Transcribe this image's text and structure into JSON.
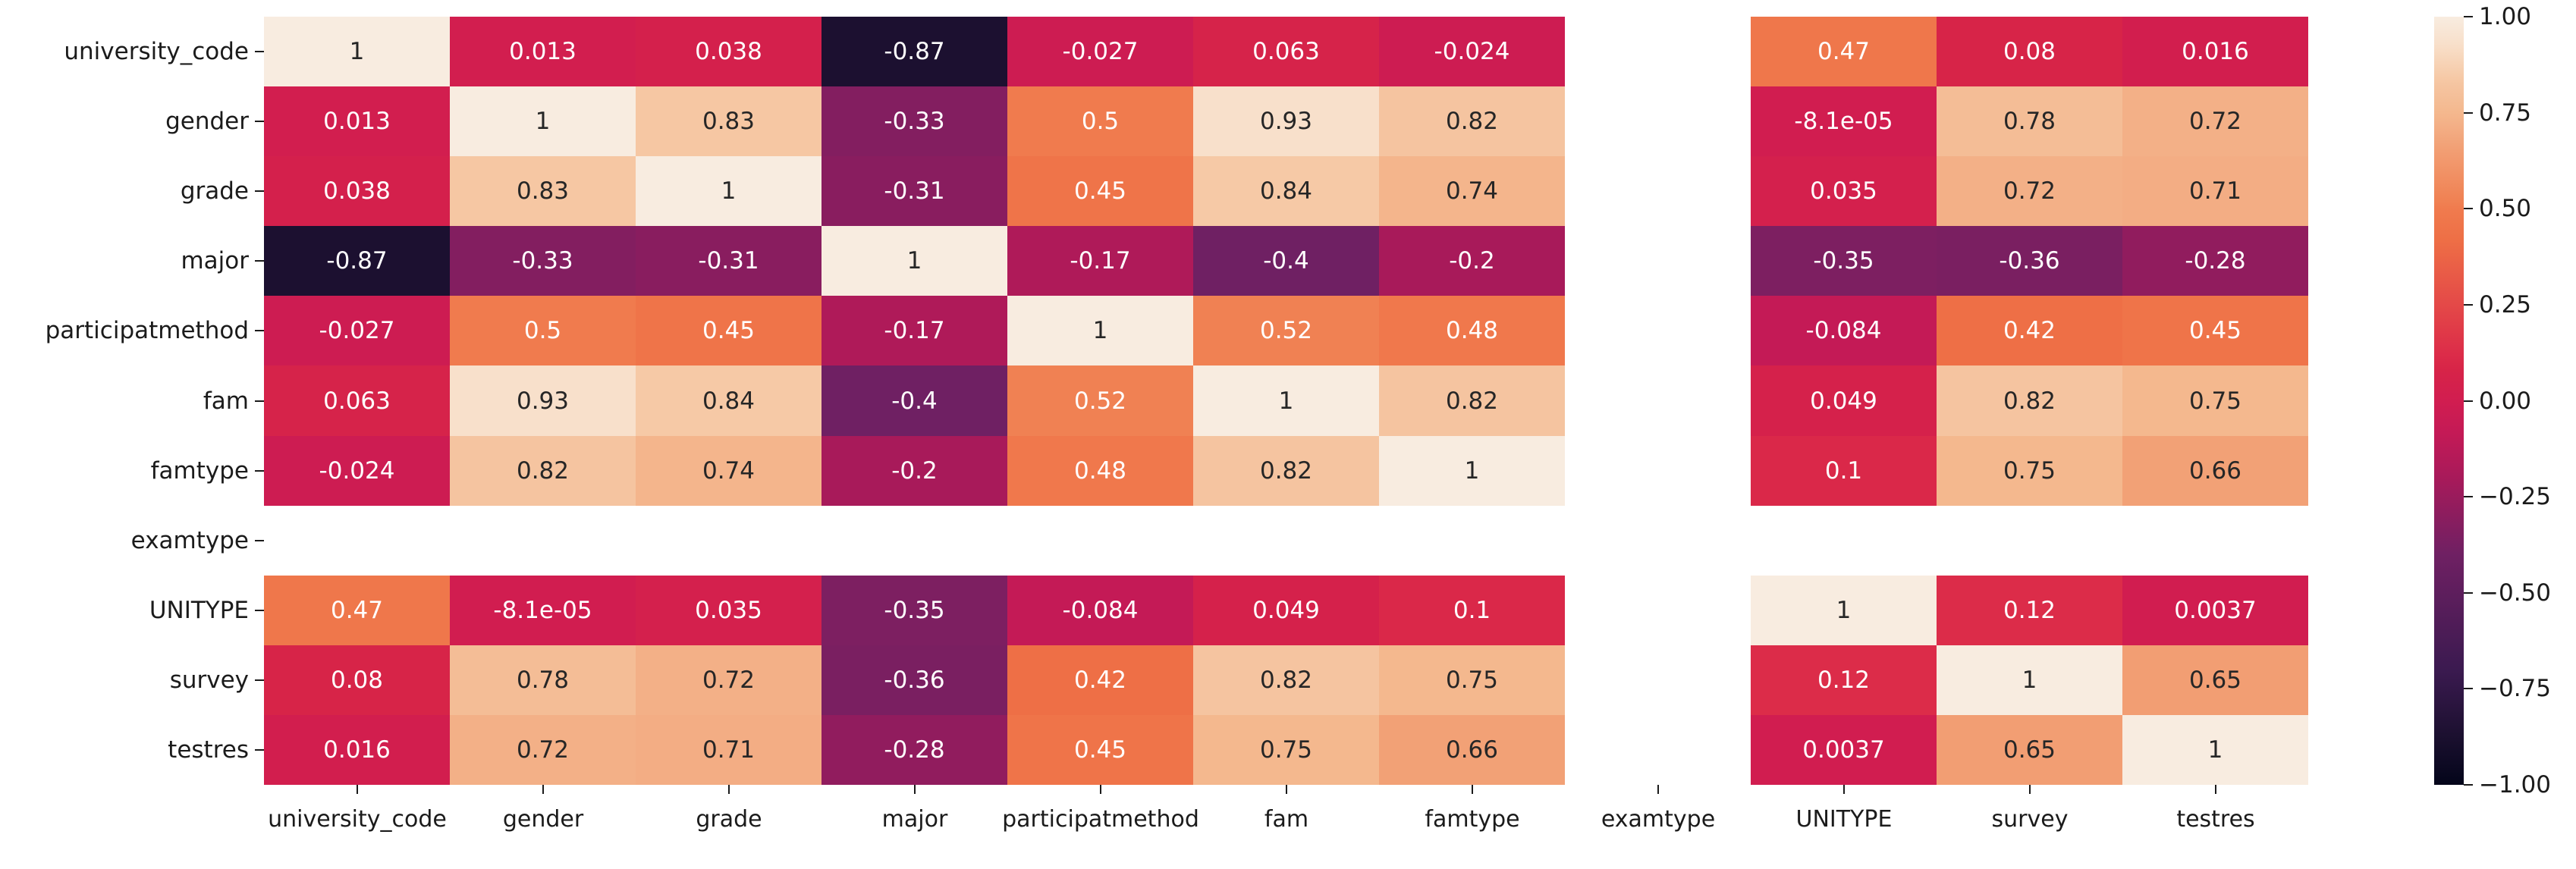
{
  "figure": {
    "background": "#ffffff",
    "title": ""
  },
  "chart_data": {
    "type": "heatmap",
    "subtype": "correlation-matrix",
    "title": "",
    "xlabel": "",
    "ylabel": "",
    "variables": [
      "university_code",
      "gender",
      "grade",
      "major",
      "participatmethod",
      "fam",
      "famtype",
      "examtype",
      "UNITYPE",
      "survey",
      "testres"
    ],
    "x_tick_labels": [
      "university_code",
      "gender",
      "grade",
      "major",
      "participatmethod",
      "fam",
      "famtype",
      "examtype",
      "UNITYPE",
      "survey",
      "testres"
    ],
    "y_tick_labels": [
      "university_code",
      "gender",
      "grade",
      "major",
      "participatmethod",
      "fam",
      "famtype",
      "examtype",
      "UNITYPE",
      "survey",
      "testres"
    ],
    "missing_variable": "examtype",
    "value_range": [
      -1,
      1
    ],
    "grid": false,
    "matrix": [
      [
        1,
        0.013,
        0.038,
        -0.87,
        -0.027,
        0.063,
        -0.024,
        null,
        0.47,
        0.08,
        0.016
      ],
      [
        0.013,
        1,
        0.83,
        -0.33,
        0.5,
        0.93,
        0.82,
        null,
        -8.1e-05,
        0.78,
        0.72
      ],
      [
        0.038,
        0.83,
        1,
        -0.31,
        0.45,
        0.84,
        0.74,
        null,
        0.035,
        0.72,
        0.71
      ],
      [
        -0.87,
        -0.33,
        -0.31,
        1,
        -0.17,
        -0.4,
        -0.2,
        null,
        -0.35,
        -0.36,
        -0.28
      ],
      [
        -0.027,
        0.5,
        0.45,
        -0.17,
        1,
        0.52,
        0.48,
        null,
        -0.084,
        0.42,
        0.45
      ],
      [
        0.063,
        0.93,
        0.84,
        -0.4,
        0.52,
        1,
        0.82,
        null,
        0.049,
        0.82,
        0.75
      ],
      [
        -0.024,
        0.82,
        0.74,
        -0.2,
        0.48,
        0.82,
        1,
        null,
        0.1,
        0.75,
        0.66
      ],
      [
        null,
        null,
        null,
        null,
        null,
        null,
        null,
        null,
        null,
        null,
        null
      ],
      [
        0.47,
        -8.1e-05,
        0.035,
        -0.35,
        -0.084,
        0.049,
        0.1,
        null,
        1,
        0.12,
        0.0037
      ],
      [
        0.08,
        0.78,
        0.72,
        -0.36,
        0.42,
        0.82,
        0.75,
        null,
        0.12,
        1,
        0.65
      ],
      [
        0.016,
        0.72,
        0.71,
        -0.28,
        0.45,
        0.75,
        0.66,
        null,
        0.0037,
        0.65,
        1
      ]
    ],
    "matrix_display": [
      [
        "1",
        "0.013",
        "0.038",
        "-0.87",
        "-0.027",
        "0.063",
        "-0.024",
        null,
        "0.47",
        "0.08",
        "0.016"
      ],
      [
        "0.013",
        "1",
        "0.83",
        "-0.33",
        "0.5",
        "0.93",
        "0.82",
        null,
        "-8.1e-05",
        "0.78",
        "0.72"
      ],
      [
        "0.038",
        "0.83",
        "1",
        "-0.31",
        "0.45",
        "0.84",
        "0.74",
        null,
        "0.035",
        "0.72",
        "0.71"
      ],
      [
        "-0.87",
        "-0.33",
        "-0.31",
        "1",
        "-0.17",
        "-0.4",
        "-0.2",
        null,
        "-0.35",
        "-0.36",
        "-0.28"
      ],
      [
        "-0.027",
        "0.5",
        "0.45",
        "-0.17",
        "1",
        "0.52",
        "0.48",
        null,
        "-0.084",
        "0.42",
        "0.45"
      ],
      [
        "0.063",
        "0.93",
        "0.84",
        "-0.4",
        "0.52",
        "1",
        "0.82",
        null,
        "0.049",
        "0.82",
        "0.75"
      ],
      [
        "-0.024",
        "0.82",
        "0.74",
        "-0.2",
        "0.48",
        "0.82",
        "1",
        null,
        "0.1",
        "0.75",
        "0.66"
      ],
      [
        null,
        null,
        null,
        null,
        null,
        null,
        null,
        null,
        null,
        null,
        null
      ],
      [
        "0.47",
        "-8.1e-05",
        "0.035",
        "-0.35",
        "-0.084",
        "0.049",
        "0.1",
        null,
        "1",
        "0.12",
        "0.0037"
      ],
      [
        "0.08",
        "0.78",
        "0.72",
        "-0.36",
        "0.42",
        "0.82",
        "0.75",
        null,
        "0.12",
        "1",
        "0.65"
      ],
      [
        "0.016",
        "0.72",
        "0.71",
        "-0.28",
        "0.45",
        "0.75",
        "0.66",
        null,
        "0.0037",
        "0.65",
        "1"
      ]
    ],
    "colormap": {
      "name": "rocket",
      "stops": [
        [
          0.0,
          "#03051A"
        ],
        [
          0.065,
          "#1C1030"
        ],
        [
          0.15,
          "#3B1A50"
        ],
        [
          0.3,
          "#6F2063"
        ],
        [
          0.4,
          "#A81A5A"
        ],
        [
          0.458,
          "#C41A56"
        ],
        [
          0.5,
          "#D11D50"
        ],
        [
          0.54,
          "#D72448"
        ],
        [
          0.56,
          "#DC2C49"
        ],
        [
          0.71,
          "#EE6F46"
        ],
        [
          0.75,
          "#F07B4E"
        ],
        [
          0.76,
          "#F08153"
        ],
        [
          0.825,
          "#F29E73"
        ],
        [
          0.86,
          "#F3B087"
        ],
        [
          0.875,
          "#F4B88E"
        ],
        [
          0.91,
          "#F5C4A0"
        ],
        [
          0.92,
          "#F6C9A6"
        ],
        [
          0.965,
          "#F8E0CB"
        ],
        [
          1.0,
          "#F8ECE0"
        ]
      ]
    },
    "annotation_colors": {
      "dark": "#262626",
      "light": "#ffffff",
      "luminance_threshold": 0.408
    },
    "axis_label_color": "#1b1b1b",
    "colorbar": {
      "position": "right",
      "min": -1.0,
      "max": 1.0,
      "ticks": [
        {
          "label": "1.00",
          "value": 1.0
        },
        {
          "label": "0.75",
          "value": 0.75
        },
        {
          "label": "0.50",
          "value": 0.5
        },
        {
          "label": "0.25",
          "value": 0.25
        },
        {
          "label": "0.00",
          "value": 0.0
        },
        {
          "label": "−0.25",
          "value": -0.25
        },
        {
          "label": "−0.50",
          "value": -0.5
        },
        {
          "label": "−0.75",
          "value": -0.75
        },
        {
          "label": "−1.00",
          "value": -1.0
        }
      ]
    }
  }
}
